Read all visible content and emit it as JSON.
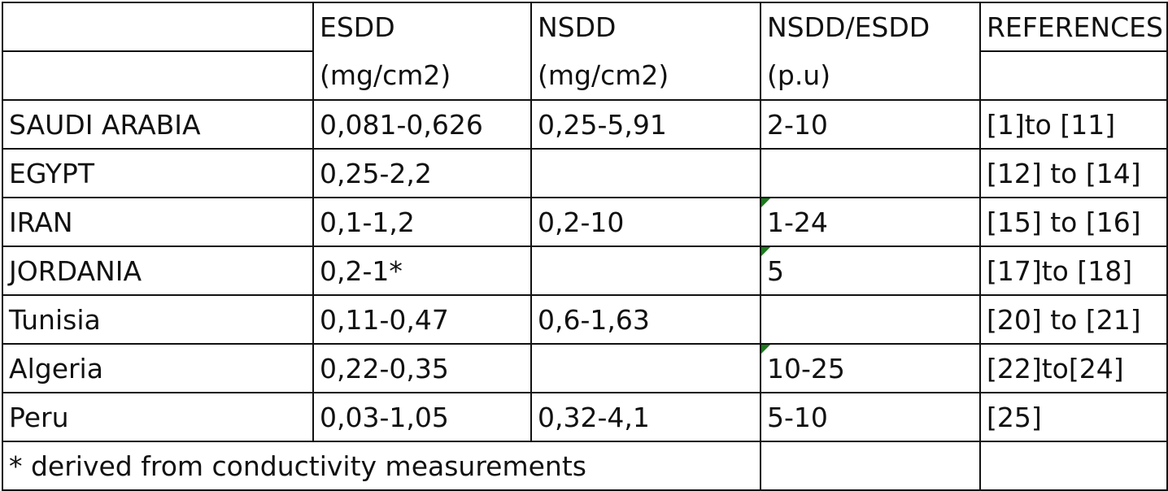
{
  "table": {
    "header": {
      "country": "",
      "esdd": "ESDD",
      "nsdd": "NSDD",
      "ratio": "NSDD/ESDD",
      "references": "REFERENCES"
    },
    "units": {
      "country": "",
      "esdd": "(mg/cm2)",
      "nsdd": "(mg/cm2)",
      "ratio": "(p.u)",
      "references": ""
    },
    "rows": [
      {
        "country": "SAUDI ARABIA",
        "esdd": "0,081-0,626",
        "nsdd": "0,25-5,91",
        "ratio": "2-10",
        "references": "[1]to [11]"
      },
      {
        "country": "EGYPT",
        "esdd": "0,25-2,2",
        "nsdd": "",
        "ratio": "",
        "references": "[12] to [14]"
      },
      {
        "country": "IRAN",
        "esdd": "0,1-1,2",
        "nsdd": "0,2-10",
        "ratio": "1-24",
        "references": "[15] to [16]"
      },
      {
        "country": "JORDANIA",
        "esdd": "0,2-1*",
        "nsdd": "",
        "ratio": "5",
        "references": "[17]to [18]"
      },
      {
        "country": "Tunisia",
        "esdd": "0,11-0,47",
        "nsdd": "0,6-1,63",
        "ratio": "",
        "references": "[20] to [21]"
      },
      {
        "country": "Algeria",
        "esdd": "0,22-0,35",
        "nsdd": "",
        "ratio": "10-25",
        "references": "[22]to[24]"
      },
      {
        "country": "Peru",
        "esdd": "0,03-1,05",
        "nsdd": "0,32-4,1",
        "ratio": "5-10",
        "references": "[25]"
      }
    ],
    "footnote": "* derived from conductivity measurements",
    "comment_marker_color": "#1e7a1e"
  }
}
